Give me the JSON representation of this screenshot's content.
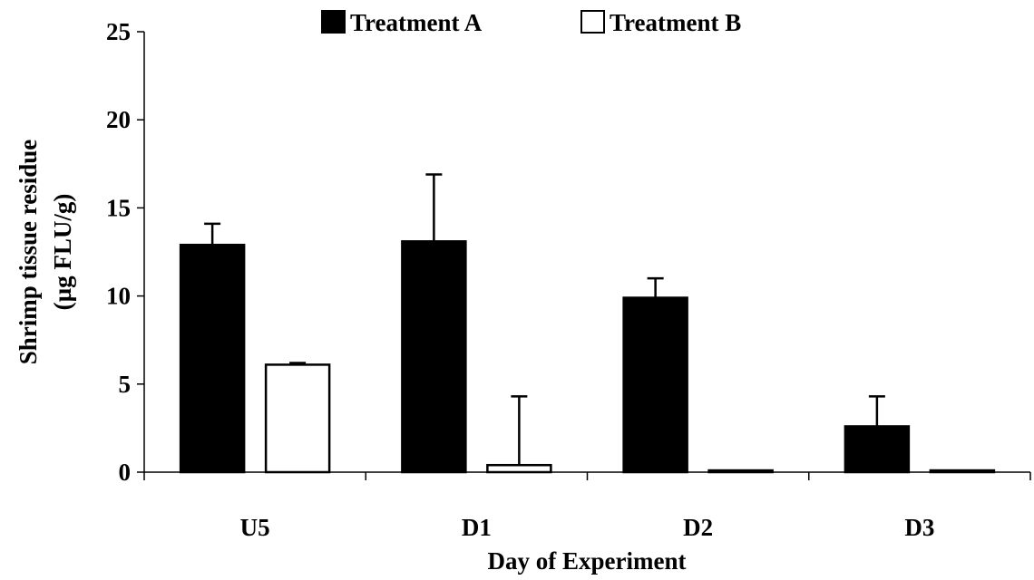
{
  "chart_data": {
    "type": "bar",
    "categories": [
      "U5",
      "D1",
      "D2",
      "D3"
    ],
    "series": [
      {
        "name": "Treatment A",
        "values": [
          12.9,
          13.1,
          9.9,
          2.6
        ],
        "error_upper": [
          1.2,
          3.8,
          1.1,
          1.7
        ],
        "fill": "#000000"
      },
      {
        "name": "Treatment B",
        "values": [
          6.1,
          0.4,
          0.1,
          0.1
        ],
        "error_upper": [
          0.1,
          3.9,
          0.0,
          0.0
        ],
        "fill": "#ffffff"
      }
    ],
    "xlabel": "Day of Experiment",
    "ylabel": [
      "Shrimp tissue residue",
      "(µg FLU/g)"
    ],
    "ylim": [
      0,
      25
    ],
    "yticks": [
      0,
      5,
      10,
      15,
      20,
      25
    ],
    "grid": false,
    "legend_position": "top"
  }
}
